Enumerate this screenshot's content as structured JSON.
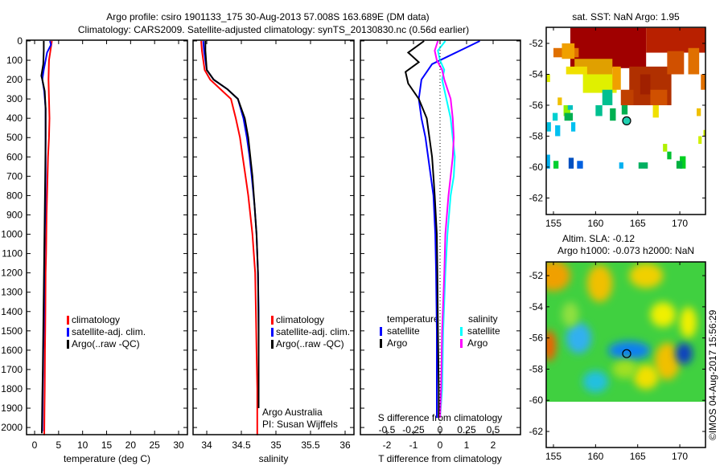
{
  "title": {
    "line1": "Argo profile: csiro 1901133_175 30-Aug-2013 57.008S 163.689E (DM data)",
    "line2": "Climatology: CARS2009. Satellite-adjusted climatology: synTS_20130830.nc (0.56d earlier)"
  },
  "credit": {
    "institution": "Argo Australia",
    "pi": "PI: Susan Wijffels",
    "stamp": "©IMOS 04-Aug-2017 15:56:29"
  },
  "chart_data": [
    {
      "type": "line",
      "id": "temperature",
      "xlabel": "temperature (deg C)",
      "xlim": [
        -1.68,
        31.84
      ],
      "ylim": [
        -4,
        2037
      ],
      "xticks": [
        "0",
        "5",
        "10",
        "15",
        "20",
        "25",
        "30"
      ],
      "yticks": [
        "0",
        "100",
        "200",
        "300",
        "400",
        "500",
        "600",
        "700",
        "800",
        "900",
        "1000",
        "1100",
        "1200",
        "1300",
        "1400",
        "1500",
        "1600",
        "1700",
        "1800",
        "1900",
        "2000"
      ],
      "legend": [
        {
          "label": "climatology",
          "color": "#ff0000"
        },
        {
          "label": "satellite-adj. clim.",
          "color": "#0000ff"
        },
        {
          "label": "Argo(..raw -QC)",
          "color": "#000000"
        }
      ],
      "series": [
        {
          "name": "climatology",
          "color": "#ff0000",
          "x": [
            3.6,
            3.3,
            3.0,
            2.9,
            3.0,
            3.1,
            3.0,
            2.8,
            2.7,
            2.6,
            2.5,
            2.45,
            2.4,
            2.3,
            2.25,
            2.2,
            2.15,
            2.1,
            2.05,
            2.0
          ],
          "y": [
            0,
            50,
            100,
            200,
            300,
            400,
            500,
            600,
            700,
            800,
            900,
            1000,
            1100,
            1200,
            1400,
            1500,
            1600,
            1800,
            1900,
            2040
          ]
        },
        {
          "name": "satellite-adj. clim.",
          "color": "#0000ff",
          "x": [
            3.2,
            3.4,
            2.6,
            1.9,
            1.6,
            2.0,
            2.3,
            2.3,
            2.3,
            2.2,
            2.1,
            2.0,
            1.95,
            1.9,
            1.8,
            1.75,
            1.7,
            1.65,
            1.6
          ],
          "y": [
            0,
            20,
            60,
            150,
            200,
            260,
            350,
            500,
            700,
            900,
            1000,
            1200,
            1400,
            1500,
            1600,
            1700,
            1800,
            1900,
            2020
          ]
        },
        {
          "name": "Argo",
          "color": "#000000",
          "x": [
            1.9,
            1.9,
            1.8,
            1.4,
            1.6,
            2.1,
            2.3,
            2.3,
            2.2,
            2.1,
            2.0,
            1.9,
            1.8,
            1.7,
            1.6,
            1.55,
            1.5
          ],
          "y": [
            0,
            50,
            120,
            180,
            200,
            260,
            350,
            500,
            700,
            900,
            1100,
            1300,
            1500,
            1700,
            1850,
            1950,
            2030
          ]
        }
      ]
    },
    {
      "type": "line",
      "id": "salinity",
      "xlabel": "salinity",
      "xlim": [
        33.802,
        36.128
      ],
      "ylim": [
        -4,
        2037
      ],
      "xticks": [
        "34",
        "34.5",
        "35",
        "35.5",
        "36"
      ],
      "legend": [
        {
          "label": "climatology",
          "color": "#ff0000"
        },
        {
          "label": "satellite-adj. clim.",
          "color": "#0000ff"
        },
        {
          "label": "Argo(..raw -QC)",
          "color": "#000000"
        }
      ],
      "series": [
        {
          "name": "climatology",
          "color": "#ff0000",
          "x": [
            33.92,
            33.93,
            33.97,
            34.05,
            34.2,
            34.35,
            34.42,
            34.48,
            34.52,
            34.56,
            34.6,
            34.63,
            34.66,
            34.68,
            34.7,
            34.71,
            34.72,
            34.73,
            34.73
          ],
          "y": [
            0,
            50,
            150,
            200,
            250,
            300,
            400,
            500,
            600,
            700,
            800,
            900,
            1000,
            1100,
            1200,
            1400,
            1600,
            1800,
            2040
          ]
        },
        {
          "name": "satellite-adj. clim.",
          "color": "#0000ff",
          "x": [
            33.95,
            33.96,
            34.0,
            34.1,
            34.3,
            34.45,
            34.53,
            34.58,
            34.62,
            34.65,
            34.69,
            34.72,
            34.74,
            34.75,
            34.75,
            34.75
          ],
          "y": [
            0,
            50,
            150,
            200,
            250,
            300,
            400,
            500,
            600,
            700,
            850,
            1000,
            1200,
            1400,
            1700,
            1900
          ]
        },
        {
          "name": "Argo",
          "color": "#000000",
          "x": [
            33.98,
            33.98,
            34.0,
            34.1,
            34.3,
            34.45,
            34.55,
            34.6,
            34.63,
            34.66,
            34.69,
            34.72,
            34.74,
            34.75,
            34.75
          ],
          "y": [
            0,
            50,
            150,
            200,
            250,
            300,
            400,
            500,
            600,
            700,
            850,
            1000,
            1200,
            1500,
            1900
          ]
        }
      ]
    },
    {
      "type": "line",
      "id": "difference",
      "xlabel": "T difference from climatology",
      "xlabel_top": "S difference from climatology",
      "xlim": [
        -3.0,
        3.03
      ],
      "xlim_salinity": [
        -0.75,
        0.758
      ],
      "ylim": [
        -4,
        2037
      ],
      "xticks": [
        "-2",
        "-1",
        "0",
        "1",
        "2"
      ],
      "xticks_salinity": [
        "-0.5",
        "-0.25",
        "0",
        "0.25",
        "0.5"
      ],
      "legend_temperature": {
        "title": "temperature",
        "items": [
          {
            "label": "satellite",
            "color": "#0000ff"
          },
          {
            "label": "Argo",
            "color": "#000000"
          }
        ]
      },
      "legend_salinity": {
        "title": "salinity",
        "items": [
          {
            "label": "satellite",
            "color": "#00ffff"
          },
          {
            "label": "Argo",
            "color": "#ff00ff"
          }
        ]
      },
      "series": [
        {
          "name": "temperature satellite",
          "color": "#0000ff",
          "unit": "T",
          "x": [
            1.5,
            0.9,
            0.3,
            -0.3,
            -0.7,
            -0.8,
            -0.7,
            -0.55,
            -0.45,
            -0.35,
            -0.25,
            -0.18,
            -0.15,
            -0.12,
            -0.12,
            -0.12
          ],
          "y": [
            0,
            40,
            80,
            120,
            200,
            300,
            400,
            500,
            600,
            700,
            800,
            1000,
            1200,
            1500,
            1800,
            1950
          ]
        },
        {
          "name": "temperature Argo",
          "color": "#000000",
          "unit": "T",
          "x": [
            -0.6,
            -1.2,
            -0.8,
            -1.3,
            -1.2,
            -0.8,
            -0.5,
            -0.4,
            -0.3,
            -0.25,
            -0.2,
            -0.12,
            -0.1,
            -0.08,
            -0.05,
            -0.05
          ],
          "y": [
            0,
            60,
            110,
            160,
            220,
            300,
            400,
            500,
            600,
            700,
            800,
            1000,
            1200,
            1500,
            1800,
            1950
          ]
        },
        {
          "name": "salinity satellite",
          "color": "#00ffff",
          "unit": "S",
          "x": [
            0.05,
            -0.02,
            0.0,
            0.04,
            0.02,
            0.06,
            0.1,
            0.12,
            0.14,
            0.13,
            0.1,
            0.07,
            0.05,
            0.03,
            0.02,
            0.0
          ],
          "y": [
            0,
            50,
            100,
            150,
            200,
            300,
            400,
            500,
            600,
            700,
            800,
            1000,
            1200,
            1500,
            1800,
            1950
          ]
        },
        {
          "name": "salinity Argo",
          "color": "#ff00ff",
          "unit": "S",
          "x": [
            -0.02,
            -0.05,
            -0.03,
            0.02,
            0.04,
            0.1,
            0.12,
            0.13,
            0.12,
            0.1,
            0.08,
            0.05,
            0.04,
            0.02,
            0.01,
            0.0
          ],
          "y": [
            0,
            50,
            100,
            150,
            200,
            300,
            400,
            500,
            600,
            700,
            800,
            1000,
            1200,
            1500,
            1800,
            1950
          ]
        }
      ]
    },
    {
      "type": "heatmap",
      "id": "sst-map",
      "title": "sat. SST: NaN Argo: 1.95",
      "xlim": [
        154.14,
        173.05
      ],
      "ylim": [
        -50.96,
        -63.07
      ],
      "xticks": [
        "155",
        "160",
        "165",
        "170"
      ],
      "yticks": [
        "-52",
        "-54",
        "-56",
        "-58",
        "-60",
        "-62"
      ],
      "argo_position": {
        "lon": 163.689,
        "lat": -57.008
      }
    },
    {
      "type": "heatmap",
      "id": "sla-map",
      "title_line1": "Altim. SLA: -0.12",
      "title_line2": "Argo h1000: -0.073 h2000: NaN",
      "xlim": [
        154.14,
        173.05
      ],
      "ylim": [
        -51.12,
        -63.03
      ],
      "xticks": [
        "155",
        "160",
        "165",
        "170"
      ],
      "yticks": [
        "-52",
        "-54",
        "-56",
        "-58",
        "-60",
        "-62"
      ],
      "argo_position": {
        "lon": 163.689,
        "lat": -57.008
      }
    }
  ]
}
